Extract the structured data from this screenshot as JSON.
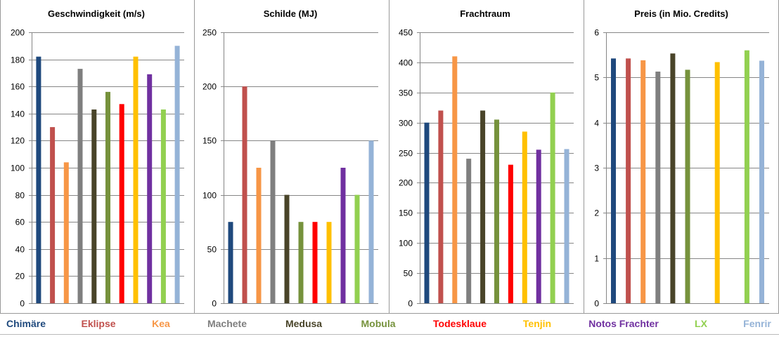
{
  "ships": [
    {
      "name": "Chimäre",
      "color": "#1F497D"
    },
    {
      "name": "Eklipse",
      "color": "#C0504D"
    },
    {
      "name": "Kea",
      "color": "#F79646"
    },
    {
      "name": "Machete",
      "color": "#7F7F7F"
    },
    {
      "name": "Medusa",
      "color": "#494429"
    },
    {
      "name": "Mobula",
      "color": "#76923C"
    },
    {
      "name": "Todesklaue",
      "color": "#FF0000"
    },
    {
      "name": "Tenjin",
      "color": "#FFC000"
    },
    {
      "name": "Notos Frachter",
      "color": "#7030A0"
    },
    {
      "name": "LX",
      "color": "#92D050"
    },
    {
      "name": "Fenrir",
      "color": "#95B3D7"
    }
  ],
  "chart_data": [
    {
      "type": "bar",
      "title": "Geschwindigkeit (m/s)",
      "xlabel": "",
      "ylabel": "",
      "ylim": [
        0,
        200
      ],
      "yticks": [
        0,
        20,
        40,
        60,
        80,
        100,
        120,
        140,
        160,
        180,
        200
      ],
      "grid": true,
      "categories": [
        "Chimäre",
        "Eklipse",
        "Kea",
        "Machete",
        "Medusa",
        "Mobula",
        "Todesklaue",
        "Tenjin",
        "Notos Frachter",
        "LX",
        "Fenrir"
      ],
      "values": [
        182,
        130,
        104,
        173,
        143,
        156,
        147,
        182,
        169,
        143,
        190
      ]
    },
    {
      "type": "bar",
      "title": "Schilde (MJ)",
      "xlabel": "",
      "ylabel": "",
      "ylim": [
        0,
        250
      ],
      "yticks": [
        0,
        50,
        100,
        150,
        200,
        250
      ],
      "grid": true,
      "categories": [
        "Chimäre",
        "Eklipse",
        "Kea",
        "Machete",
        "Medusa",
        "Mobula",
        "Todesklaue",
        "Tenjin",
        "Notos Frachter",
        "LX",
        "Fenrir"
      ],
      "values": [
        75,
        200,
        125,
        150,
        100,
        75,
        75,
        75,
        125,
        100,
        150
      ]
    },
    {
      "type": "bar",
      "title": "Frachtraum",
      "xlabel": "",
      "ylabel": "",
      "ylim": [
        0,
        450
      ],
      "yticks": [
        0,
        50,
        100,
        150,
        200,
        250,
        300,
        350,
        400,
        450
      ],
      "grid": true,
      "categories": [
        "Chimäre",
        "Eklipse",
        "Kea",
        "Machete",
        "Medusa",
        "Mobula",
        "Todesklaue",
        "Tenjin",
        "Notos Frachter",
        "LX",
        "Fenrir"
      ],
      "values": [
        300,
        320,
        410,
        240,
        320,
        305,
        230,
        285,
        255,
        350,
        256
      ]
    },
    {
      "type": "bar",
      "title": "Preis (in Mio. Credits)",
      "xlabel": "",
      "ylabel": "",
      "ylim": [
        0,
        6
      ],
      "yticks": [
        0,
        1,
        2,
        3,
        4,
        5,
        6
      ],
      "grid": true,
      "categories": [
        "Chimäre",
        "Eklipse",
        "Kea",
        "Machete",
        "Medusa",
        "Mobula",
        "Todesklaue",
        "Tenjin",
        "Notos Frachter",
        "LX",
        "Fenrir"
      ],
      "values": [
        5.42,
        5.42,
        5.38,
        5.13,
        5.53,
        5.17,
        null,
        5.34,
        null,
        5.6,
        5.37
      ]
    }
  ]
}
